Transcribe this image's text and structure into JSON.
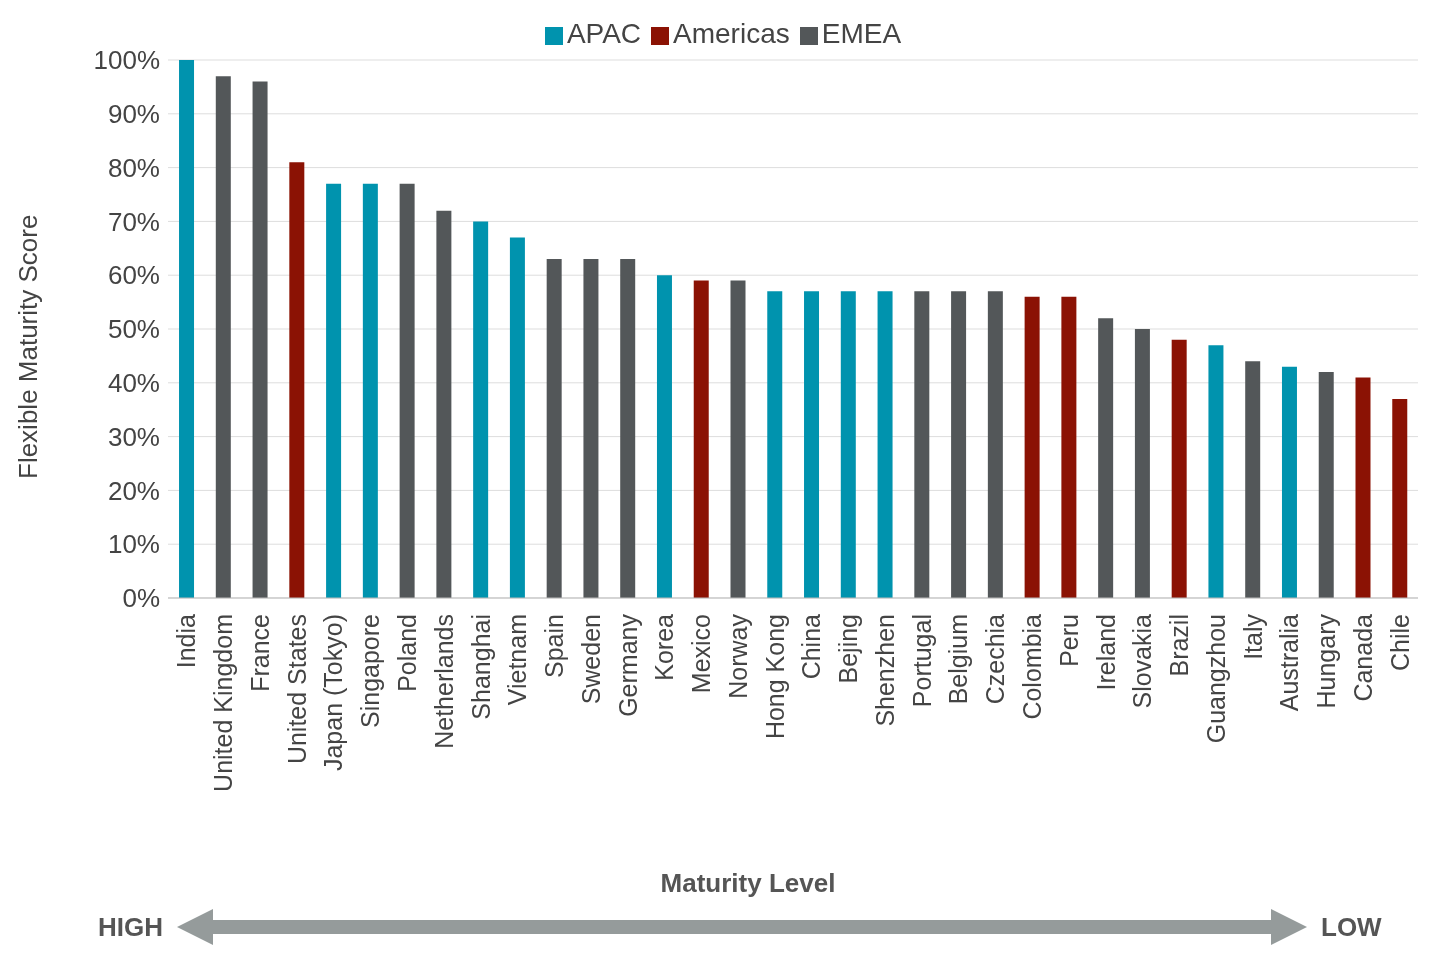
{
  "chart_data": {
    "type": "bar",
    "stacked": true,
    "xlabel": "Maturity Level",
    "ylabel": "Flexible Maturity Score",
    "categories": [
      "India",
      "United Kingdom",
      "France",
      "United States",
      "Japan (Tokyo)",
      "Singapore",
      "Poland",
      "Netherlands",
      "Shanghai",
      "Vietnam",
      "Spain",
      "Sweden",
      "Germany",
      "Korea",
      "Mexico",
      "Norway",
      "Hong Kong",
      "China",
      "Bejing",
      "Shenzhen",
      "Portugal",
      "Belgium",
      "Czechia",
      "Colombia",
      "Peru",
      "Ireland",
      "Slovakia",
      "Brazil",
      "Guangzhou",
      "Italy",
      "Australia",
      "Hungary",
      "Canada",
      "Chile"
    ],
    "series": [
      {
        "name": "Americas",
        "color": "#8b1204",
        "values": [
          null,
          null,
          null,
          81,
          null,
          null,
          null,
          null,
          null,
          null,
          null,
          null,
          null,
          null,
          59,
          null,
          null,
          null,
          null,
          null,
          null,
          null,
          null,
          56,
          56,
          null,
          null,
          48,
          null,
          null,
          null,
          null,
          41,
          37
        ]
      },
      {
        "name": "APAC",
        "color": "#0093ae",
        "values": [
          100,
          null,
          null,
          null,
          77,
          77,
          null,
          null,
          70,
          67,
          null,
          null,
          null,
          60,
          null,
          null,
          57,
          57,
          57,
          57,
          null,
          null,
          null,
          null,
          null,
          null,
          null,
          null,
          47,
          null,
          43,
          null,
          null,
          null
        ]
      },
      {
        "name": "EMEA",
        "color": "#535759",
        "values": [
          null,
          97,
          96,
          null,
          null,
          null,
          77,
          72,
          null,
          null,
          63,
          63,
          63,
          null,
          null,
          59,
          null,
          null,
          null,
          null,
          57,
          57,
          57,
          null,
          null,
          52,
          50,
          null,
          null,
          44,
          null,
          42,
          null,
          null
        ]
      }
    ],
    "ylim": [
      0,
      100
    ],
    "yticks": [
      {
        "value": 0,
        "label": "0%"
      },
      {
        "value": 10,
        "label": "10%"
      },
      {
        "value": 20,
        "label": "20%"
      },
      {
        "value": 30,
        "label": "30%"
      },
      {
        "value": 40,
        "label": "40%"
      },
      {
        "value": 50,
        "label": "50%"
      },
      {
        "value": 60,
        "label": "60%"
      },
      {
        "value": 70,
        "label": "70%"
      },
      {
        "value": 80,
        "label": "80%"
      },
      {
        "value": 90,
        "label": "90%"
      },
      {
        "value": 100,
        "label": "100%"
      }
    ],
    "grid": "y",
    "legend": "top",
    "annotations": [
      "HIGH",
      "LOW"
    ]
  }
}
